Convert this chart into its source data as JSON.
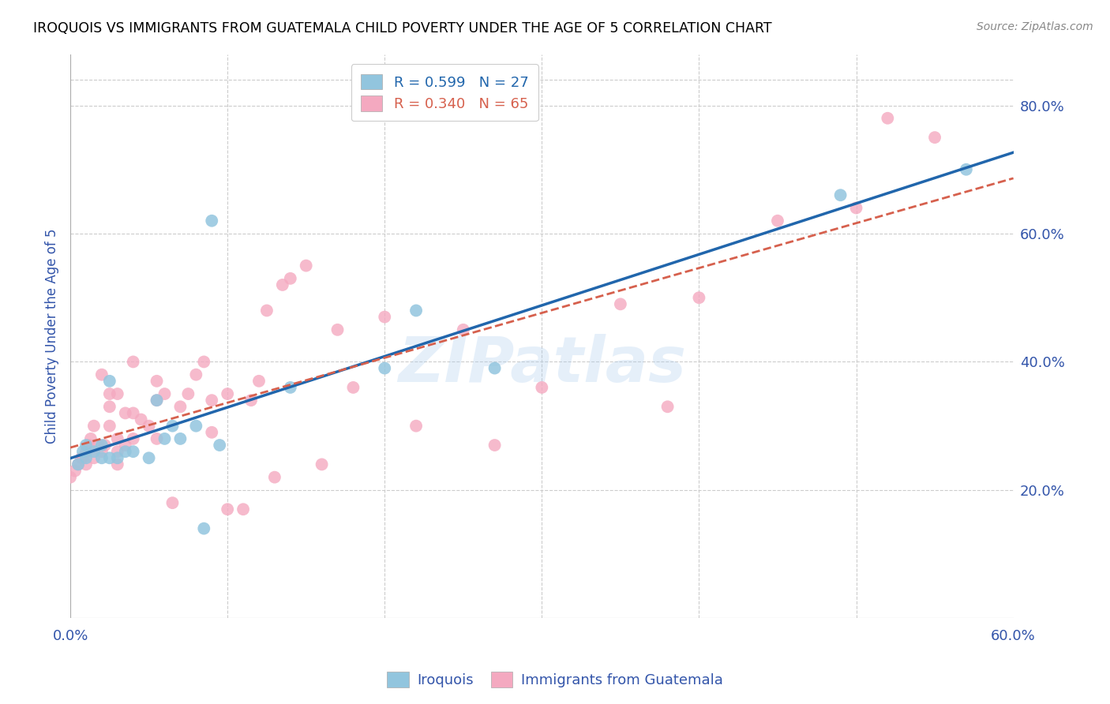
{
  "title": "IROQUOIS VS IMMIGRANTS FROM GUATEMALA CHILD POVERTY UNDER THE AGE OF 5 CORRELATION CHART",
  "source": "Source: ZipAtlas.com",
  "ylabel": "Child Poverty Under the Age of 5",
  "yticks": [
    "20.0%",
    "40.0%",
    "60.0%",
    "80.0%"
  ],
  "ytick_vals": [
    0.2,
    0.4,
    0.6,
    0.8
  ],
  "xlim": [
    0.0,
    0.6
  ],
  "ylim": [
    0.0,
    0.88
  ],
  "color_iroquois": "#92c5de",
  "color_guatemala": "#f4a9c0",
  "color_iroquois_line": "#2166ac",
  "color_guatemala_line": "#d6604d",
  "color_text": "#3355aa",
  "color_grid": "#cccccc",
  "watermark": "ZIPatlas",
  "iroquois_x": [
    0.005,
    0.008,
    0.01,
    0.01,
    0.015,
    0.02,
    0.02,
    0.025,
    0.025,
    0.03,
    0.035,
    0.04,
    0.05,
    0.055,
    0.06,
    0.065,
    0.07,
    0.08,
    0.085,
    0.09,
    0.095,
    0.14,
    0.2,
    0.22,
    0.27,
    0.49,
    0.57
  ],
  "iroquois_y": [
    0.24,
    0.26,
    0.25,
    0.27,
    0.26,
    0.25,
    0.27,
    0.25,
    0.37,
    0.25,
    0.26,
    0.26,
    0.25,
    0.34,
    0.28,
    0.3,
    0.28,
    0.3,
    0.14,
    0.62,
    0.27,
    0.36,
    0.39,
    0.48,
    0.39,
    0.66,
    0.7
  ],
  "guatemala_x": [
    0.0,
    0.003,
    0.005,
    0.007,
    0.008,
    0.01,
    0.01,
    0.012,
    0.013,
    0.015,
    0.015,
    0.018,
    0.02,
    0.02,
    0.022,
    0.025,
    0.025,
    0.025,
    0.03,
    0.03,
    0.03,
    0.03,
    0.035,
    0.035,
    0.04,
    0.04,
    0.04,
    0.045,
    0.05,
    0.055,
    0.055,
    0.055,
    0.06,
    0.065,
    0.07,
    0.075,
    0.08,
    0.085,
    0.09,
    0.09,
    0.1,
    0.1,
    0.11,
    0.115,
    0.12,
    0.125,
    0.13,
    0.135,
    0.14,
    0.15,
    0.16,
    0.17,
    0.18,
    0.2,
    0.22,
    0.25,
    0.27,
    0.3,
    0.35,
    0.38,
    0.4,
    0.45,
    0.5,
    0.52,
    0.55
  ],
  "guatemala_y": [
    0.22,
    0.23,
    0.24,
    0.25,
    0.25,
    0.24,
    0.26,
    0.27,
    0.28,
    0.25,
    0.3,
    0.27,
    0.26,
    0.38,
    0.27,
    0.3,
    0.33,
    0.35,
    0.24,
    0.26,
    0.28,
    0.35,
    0.27,
    0.32,
    0.28,
    0.32,
    0.4,
    0.31,
    0.3,
    0.28,
    0.34,
    0.37,
    0.35,
    0.18,
    0.33,
    0.35,
    0.38,
    0.4,
    0.29,
    0.34,
    0.17,
    0.35,
    0.17,
    0.34,
    0.37,
    0.48,
    0.22,
    0.52,
    0.53,
    0.55,
    0.24,
    0.45,
    0.36,
    0.47,
    0.3,
    0.45,
    0.27,
    0.36,
    0.49,
    0.33,
    0.5,
    0.62,
    0.64,
    0.78,
    0.75
  ]
}
